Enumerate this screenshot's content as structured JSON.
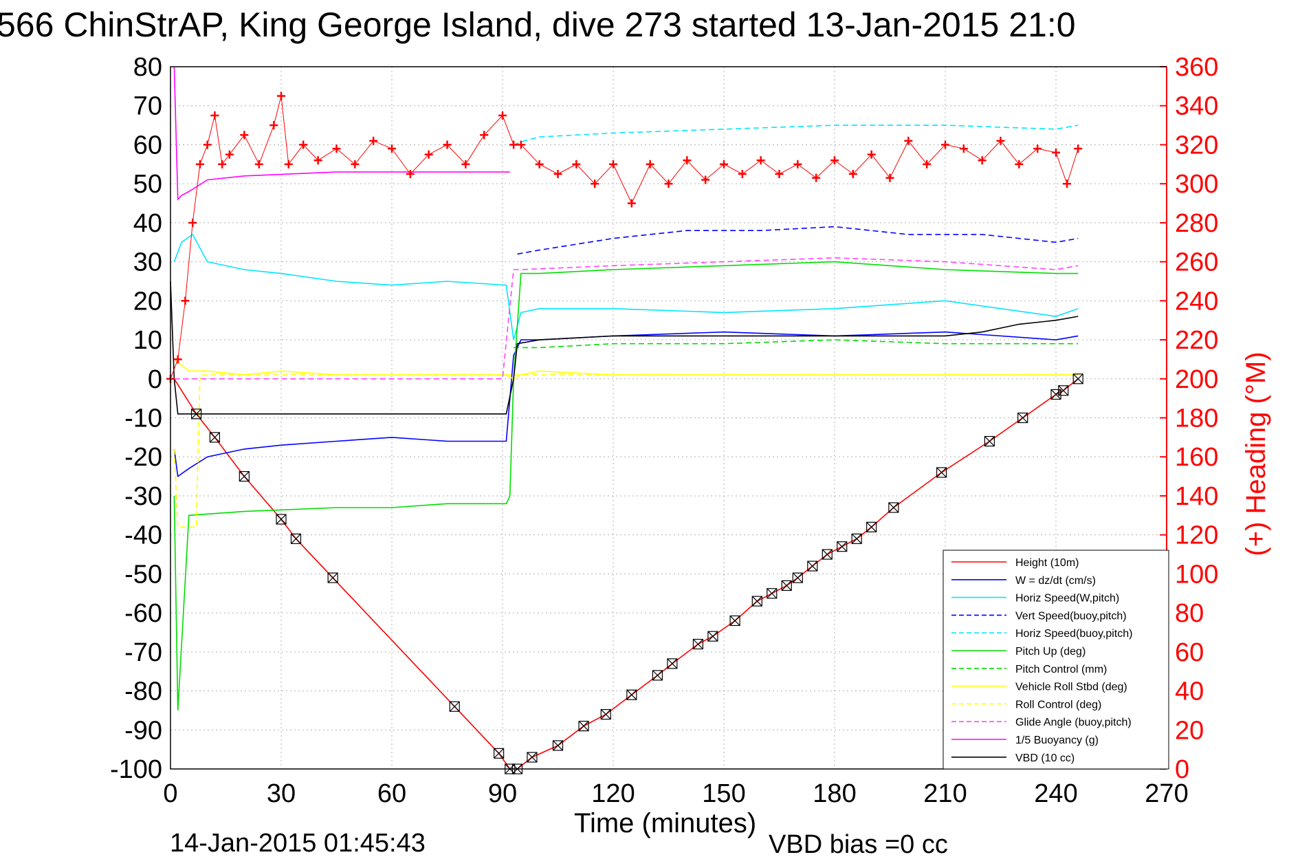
{
  "chart_data": {
    "type": "line",
    "title": "566 ChinStrAP, King George Island, dive 273 started 13-Jan-2015 21:0",
    "xlabel": "Time (minutes)",
    "ylabel": "",
    "ylabel_right": "(+) Heading (°M)",
    "xlim": [
      0,
      270
    ],
    "ylim": [
      -100,
      80
    ],
    "ylim_right": [
      0,
      360
    ],
    "x_ticks": [
      "0",
      "30",
      "60",
      "90",
      "120",
      "150",
      "180",
      "210",
      "240",
      "270"
    ],
    "y_ticks": [
      "-100",
      "-90",
      "-80",
      "-70",
      "-60",
      "-50",
      "-40",
      "-30",
      "-20",
      "-10",
      "0",
      "10",
      "20",
      "30",
      "40",
      "50",
      "60",
      "70",
      "80"
    ],
    "y_ticks_right": [
      "0",
      "20",
      "40",
      "60",
      "80",
      "100",
      "120",
      "140",
      "160",
      "180",
      "200",
      "220",
      "240",
      "260",
      "280",
      "300",
      "320",
      "340",
      "360"
    ],
    "grid": true,
    "legend_position": "bottom-right",
    "footer_left": "14-Jan-2015 01:45:43",
    "footer_center": "VBD bias =0 cc",
    "legend": [
      {
        "label": "Height (10m)",
        "color": "#ff0000",
        "dash": false
      },
      {
        "label": "W = dz/dt (cm/s)",
        "color": "#0000ff",
        "dash": false
      },
      {
        "label": "Horiz Speed(W,pitch)",
        "color": "#00e5ff",
        "dash": false
      },
      {
        "label": "Vert Speed(buoy,pitch)",
        "color": "#0000ff",
        "dash": true
      },
      {
        "label": "Horiz Speed(buoy,pitch)",
        "color": "#00e5ff",
        "dash": true
      },
      {
        "label": "Pitch Up (deg)",
        "color": "#00dd00",
        "dash": false
      },
      {
        "label": "Pitch Control (mm)",
        "color": "#00dd00",
        "dash": true
      },
      {
        "label": "Vehicle Roll Stbd (deg)",
        "color": "#ffff00",
        "dash": false
      },
      {
        "label": "Roll Control (deg)",
        "color": "#ffff00",
        "dash": true
      },
      {
        "label": "Glide Angle (buoy,pitch)",
        "color": "#ff44ff",
        "dash": true
      },
      {
        "label": "1/5 Buoyancy (g)",
        "color": "#ff00ff",
        "dash": false
      },
      {
        "label": "VBD (10 cc)",
        "color": "#000000",
        "dash": false
      }
    ],
    "series": [
      {
        "name": "Height (10m)",
        "color": "#ff0000",
        "dash": false,
        "x": [
          0,
          1,
          7,
          12,
          20,
          30,
          34,
          44,
          77,
          89,
          92,
          94,
          98,
          105,
          112,
          118,
          125,
          132,
          136,
          143,
          147,
          153,
          159,
          163,
          167,
          170,
          174,
          178,
          182,
          186,
          190,
          196,
          209,
          222,
          231,
          240,
          242,
          246
        ],
        "y": [
          0,
          0,
          -9,
          -15,
          -25,
          -36,
          -41,
          -51,
          -84,
          -96,
          -100,
          -100,
          -97,
          -94,
          -89,
          -86,
          -81,
          -76,
          -73,
          -68,
          -66,
          -62,
          -57,
          -55,
          -53,
          -51,
          -48,
          -45,
          -43,
          -41,
          -38,
          -33,
          -24,
          -16,
          -10,
          -4,
          -3,
          0
        ]
      },
      {
        "name": "W = dz/dt (cm/s)",
        "color": "#0000ff",
        "dash": false,
        "x": [
          1,
          2,
          5,
          10,
          20,
          30,
          45,
          60,
          75,
          91,
          93,
          95,
          100,
          120,
          150,
          180,
          210,
          240,
          246
        ],
        "y": [
          -18,
          -25,
          -23,
          -20,
          -18,
          -17,
          -16,
          -15,
          -16,
          -16,
          6,
          10,
          10,
          11,
          12,
          11,
          12,
          10,
          11
        ]
      },
      {
        "name": "Horiz Speed(W,pitch)",
        "color": "#00e5ff",
        "dash": false,
        "x": [
          1,
          3,
          6,
          10,
          20,
          30,
          45,
          60,
          75,
          91,
          93,
          95,
          100,
          120,
          150,
          180,
          210,
          240,
          246
        ],
        "y": [
          30,
          35,
          37,
          30,
          28,
          27,
          25,
          24,
          25,
          24,
          10,
          17,
          18,
          18,
          17,
          18,
          20,
          16,
          18
        ]
      },
      {
        "name": "Vert Speed(buoy,pitch)",
        "color": "#0000ff",
        "dash": true,
        "x": [
          94,
          100,
          120,
          140,
          160,
          180,
          200,
          220,
          240,
          246
        ],
        "y": [
          32,
          33,
          36,
          38,
          38,
          39,
          37,
          37,
          35,
          36
        ]
      },
      {
        "name": "Horiz Speed(buoy,pitch)",
        "color": "#00e5ff",
        "dash": true,
        "x": [
          93,
          96,
          100,
          120,
          150,
          180,
          210,
          240,
          246
        ],
        "y": [
          60,
          61,
          62,
          63,
          64,
          65,
          65,
          64,
          65
        ]
      },
      {
        "name": "Pitch Up (deg)",
        "color": "#00dd00",
        "dash": false,
        "x": [
          1,
          2,
          5,
          20,
          45,
          60,
          75,
          91,
          92,
          93,
          95,
          100,
          120,
          150,
          180,
          210,
          240,
          246
        ],
        "y": [
          -30,
          -85,
          -35,
          -34,
          -33,
          -33,
          -32,
          -32,
          -30,
          0,
          27,
          27,
          28,
          29,
          30,
          28,
          27,
          27
        ]
      },
      {
        "name": "Pitch Control (mm)",
        "color": "#00dd00",
        "dash": true,
        "x": [
          93,
          95,
          100,
          120,
          150,
          180,
          210,
          240,
          246
        ],
        "y": [
          8,
          8,
          8,
          9,
          9,
          10,
          9,
          9,
          9
        ]
      },
      {
        "name": "Vehicle Roll Stbd (deg)",
        "color": "#ffff00",
        "dash": false,
        "x": [
          1,
          5,
          10,
          20,
          30,
          45,
          60,
          75,
          91,
          93,
          95,
          100,
          120,
          150,
          180,
          210,
          240,
          246
        ],
        "y": [
          5,
          2,
          2,
          1,
          2,
          1,
          1,
          1,
          1,
          0,
          1,
          2,
          1,
          1,
          1,
          1,
          1,
          1
        ]
      },
      {
        "name": "Roll Control (deg)",
        "color": "#ffff00",
        "dash": true,
        "x": [
          1,
          2,
          7,
          8,
          246
        ],
        "y": [
          -18,
          -38,
          -38,
          1,
          1
        ]
      },
      {
        "name": "Glide Angle (buoy,pitch)",
        "color": "#ff44ff",
        "dash": true,
        "x": [
          1,
          30,
          60,
          90,
          93,
          95,
          120,
          150,
          180,
          210,
          240,
          246
        ],
        "y": [
          0,
          0,
          0,
          0,
          28,
          28,
          29,
          30,
          31,
          30,
          28,
          29
        ]
      },
      {
        "name": "1/5 Buoyancy (g)",
        "color": "#ff00ff",
        "dash": false,
        "x": [
          1,
          2,
          3,
          5,
          10,
          20,
          45,
          60,
          75,
          92
        ],
        "y": [
          80,
          46,
          47,
          48,
          51,
          52,
          53,
          53,
          53,
          53
        ]
      },
      {
        "name": "VBD (10 cc)",
        "color": "#000000",
        "dash": false,
        "x": [
          0,
          1,
          2,
          10,
          45,
          60,
          75,
          91,
          93,
          94,
          100,
          120,
          150,
          180,
          210,
          220,
          230,
          240,
          246
        ],
        "y": [
          25,
          0,
          -9,
          -9,
          -9,
          -9,
          -9,
          -9,
          0,
          9,
          10,
          11,
          11,
          11,
          11,
          12,
          14,
          15,
          16
        ]
      },
      {
        "name": "Heading",
        "color": "#ff0000",
        "dash": false,
        "axis": "right",
        "marker": "+",
        "x": [
          0,
          2,
          4,
          6,
          8,
          10,
          12,
          14,
          16,
          20,
          24,
          28,
          30,
          32,
          36,
          40,
          45,
          50,
          55,
          60,
          65,
          70,
          75,
          80,
          85,
          90,
          93,
          95,
          100,
          105,
          110,
          115,
          120,
          125,
          130,
          135,
          140,
          145,
          150,
          155,
          160,
          165,
          170,
          175,
          180,
          185,
          190,
          195,
          200,
          205,
          210,
          215,
          220,
          225,
          230,
          235,
          240,
          243,
          246
        ],
        "y": [
          200,
          210,
          240,
          280,
          310,
          320,
          335,
          310,
          315,
          325,
          310,
          330,
          345,
          310,
          320,
          312,
          318,
          310,
          322,
          318,
          305,
          315,
          320,
          310,
          325,
          335,
          320,
          320,
          310,
          305,
          310,
          300,
          310,
          290,
          310,
          300,
          312,
          302,
          310,
          305,
          312,
          305,
          310,
          303,
          312,
          305,
          315,
          303,
          322,
          310,
          320,
          318,
          312,
          322,
          310,
          318,
          316,
          300,
          318
        ]
      }
    ]
  }
}
